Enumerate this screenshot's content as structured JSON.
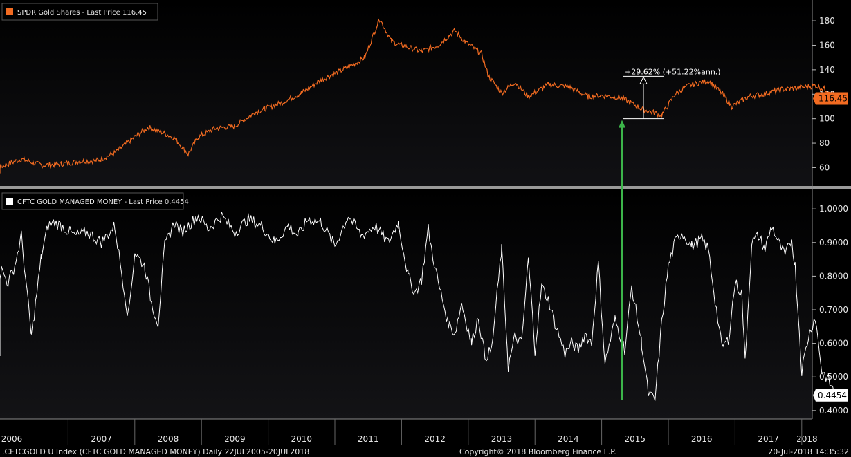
{
  "chart_data": [
    {
      "type": "line",
      "panel": "top",
      "legend": "SPDR Gold Shares - Last Price 116.45",
      "last_value_label": "116.45",
      "yticks": [
        60,
        80,
        100,
        120,
        140,
        160,
        180
      ],
      "ylim": [
        45,
        197
      ],
      "color": "#f26b21",
      "annotation": "+29.62% (+51.22%ann.)",
      "annotation_low": 100,
      "annotation_high": 129,
      "x_dates": [
        2005.55,
        2005.75,
        2006.0,
        2006.3,
        2006.6,
        2006.9,
        2007.15,
        2007.45,
        2007.7,
        2007.95,
        2008.2,
        2008.4,
        2008.6,
        2008.8,
        2008.95,
        2009.2,
        2009.5,
        2009.8,
        2009.95,
        2010.2,
        2010.5,
        2010.8,
        2011.0,
        2011.2,
        2011.45,
        2011.67,
        2011.85,
        2012.0,
        2012.3,
        2012.55,
        2012.8,
        2012.95,
        2013.2,
        2013.3,
        2013.5,
        2013.7,
        2013.9,
        2014.2,
        2014.5,
        2014.8,
        2015.0,
        2015.3,
        2015.6,
        2015.9,
        2016.1,
        2016.3,
        2016.6,
        2016.8,
        2016.95,
        2017.2,
        2017.5,
        2017.7,
        2017.95,
        2018.2,
        2018.4,
        2018.55
      ],
      "values": [
        57,
        58,
        61,
        67,
        62,
        63,
        65,
        66,
        72,
        83,
        93,
        89,
        84,
        71,
        85,
        92,
        94,
        105,
        108,
        113,
        121,
        132,
        137,
        142,
        150,
        182,
        163,
        160,
        155,
        160,
        172,
        163,
        153,
        135,
        121,
        130,
        118,
        128,
        126,
        118,
        119,
        117,
        108,
        103,
        120,
        127,
        131,
        121,
        110,
        118,
        121,
        124,
        125,
        127,
        123,
        116.45
      ]
    },
    {
      "type": "line",
      "panel": "bottom",
      "legend": "CFTC GOLD MANAGED MONEY - Last Price 0.4454",
      "last_value_label": "0.4454",
      "yticks": [
        "1.0000",
        "0.9000",
        "0.8000",
        "0.7000",
        "0.6000",
        "0.5000",
        "0.4000"
      ],
      "ylim": [
        0.375,
        1.06
      ],
      "color": "#ffffff",
      "x_dates": [
        2005.55,
        2005.65,
        2005.75,
        2005.85,
        2006.0,
        2006.1,
        2006.2,
        2006.3,
        2006.45,
        2006.6,
        2006.7,
        2006.8,
        2006.9,
        2007.1,
        2007.3,
        2007.5,
        2007.7,
        2007.9,
        2008.0,
        2008.15,
        2008.25,
        2008.35,
        2008.45,
        2008.55,
        2008.6,
        2008.7,
        2008.85,
        2008.95,
        2009.1,
        2009.3,
        2009.5,
        2009.7,
        2009.9,
        2010.1,
        2010.3,
        2010.45,
        2010.6,
        2010.8,
        2011.0,
        2011.2,
        2011.4,
        2011.6,
        2011.8,
        2011.95,
        2012.1,
        2012.2,
        2012.3,
        2012.4,
        2012.45,
        2012.55,
        2012.7,
        2012.8,
        2012.9,
        2013.05,
        2013.15,
        2013.25,
        2013.35,
        2013.5,
        2013.6,
        2013.7,
        2013.8,
        2013.9,
        2014.0,
        2014.1,
        2014.2,
        2014.3,
        2014.45,
        2014.55,
        2014.65,
        2014.75,
        2014.85,
        2014.95,
        2015.05,
        2015.2,
        2015.35,
        2015.45,
        2015.6,
        2015.7,
        2015.8,
        2015.9,
        2016.0,
        2016.1,
        2016.2,
        2016.35,
        2016.5,
        2016.6,
        2016.7,
        2016.8,
        2016.9,
        2017.0,
        2017.1,
        2017.15,
        2017.25,
        2017.35,
        2017.45,
        2017.55,
        2017.65,
        2017.75,
        2017.85,
        2017.9,
        2018.0,
        2018.1,
        2018.2,
        2018.3,
        2018.4,
        2018.5,
        2018.55
      ],
      "values": [
        0.79,
        0.72,
        0.56,
        0.74,
        0.82,
        0.78,
        0.83,
        0.92,
        0.62,
        0.86,
        0.95,
        0.96,
        0.95,
        0.92,
        0.93,
        0.9,
        0.95,
        0.68,
        0.87,
        0.83,
        0.72,
        0.66,
        0.89,
        0.94,
        0.96,
        0.93,
        0.96,
        0.98,
        0.94,
        0.98,
        0.93,
        0.97,
        0.95,
        0.9,
        0.95,
        0.92,
        0.97,
        0.96,
        0.89,
        0.98,
        0.92,
        0.95,
        0.9,
        0.96,
        0.8,
        0.75,
        0.79,
        0.94,
        0.88,
        0.78,
        0.66,
        0.63,
        0.72,
        0.6,
        0.68,
        0.56,
        0.58,
        0.88,
        0.53,
        0.62,
        0.6,
        0.85,
        0.58,
        0.77,
        0.73,
        0.66,
        0.57,
        0.6,
        0.58,
        0.63,
        0.6,
        0.84,
        0.54,
        0.67,
        0.58,
        0.77,
        0.6,
        0.45,
        0.43,
        0.66,
        0.83,
        0.9,
        0.93,
        0.89,
        0.91,
        0.88,
        0.73,
        0.59,
        0.61,
        0.78,
        0.75,
        0.55,
        0.9,
        0.92,
        0.88,
        0.95,
        0.9,
        0.86,
        0.91,
        0.83,
        0.52,
        0.62,
        0.68,
        0.52,
        0.49,
        0.45,
        0.4454
      ]
    }
  ],
  "x_axis": {
    "labels": [
      "2006",
      "2007",
      "2008",
      "2009",
      "2010",
      "2011",
      "2012",
      "2013",
      "2014",
      "2015",
      "2016",
      "2017",
      "2018"
    ]
  },
  "footer": {
    "left": ".CFTCGOLD U Index (CFTC GOLD MANAGED MONEY)  Daily 22JUL2005-20JUL2018",
    "center": "Copyright© 2018 Bloomberg Finance L.P.",
    "right": "20-Jul-2018 14:35:32"
  },
  "colors": {
    "background": "#000000",
    "gold_line": "#f26b21",
    "cftc_line": "#ffffff",
    "arrow": "#3cb54a",
    "separator": "#9a9a9a"
  }
}
